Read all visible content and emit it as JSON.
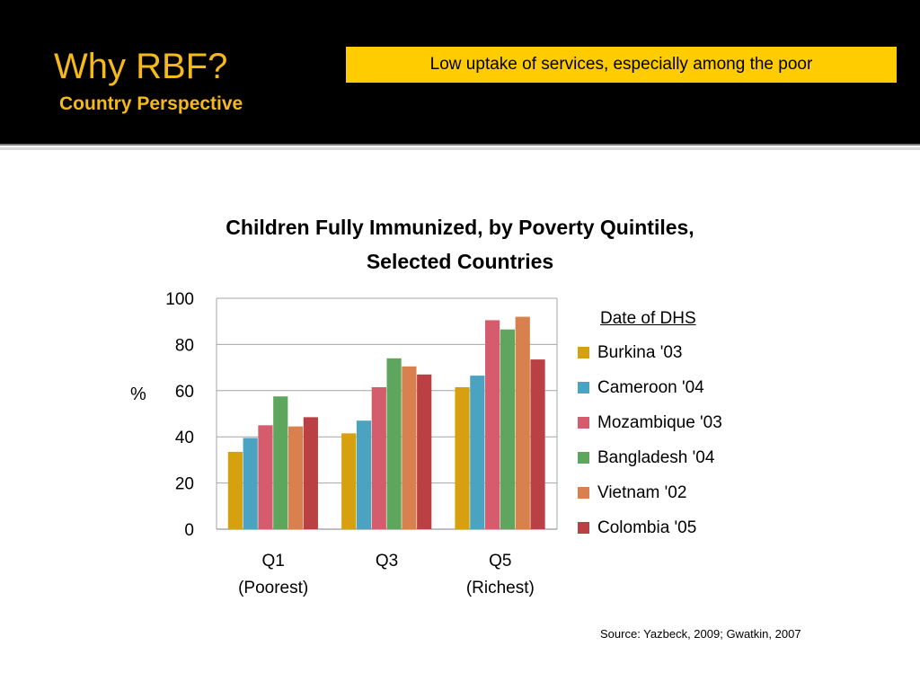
{
  "slide": {
    "title": "Why RBF?",
    "subtitle": "Country Perspective",
    "callout": "Low uptake of services, especially among the poor",
    "source": "Source: Yazbeck, 2009; Gwatkin, 2007"
  },
  "colors": {
    "header_bg": "#000000",
    "title_text": "#f5b91c",
    "callout_bg": "#ffcc00"
  },
  "chart_data": {
    "type": "bar",
    "title": "Children Fully Immunized, by Poverty Quintiles, Selected Countries",
    "ylabel": "%",
    "xlabel": "",
    "ylim": [
      0,
      100
    ],
    "yticks": [
      0,
      20,
      40,
      60,
      80,
      100
    ],
    "grid": true,
    "legend_title": "Date of DHS",
    "legend_position": "right",
    "categories": [
      "Q1\n(Poorest)",
      "Q3",
      "Q5\n(Richest)"
    ],
    "series": [
      {
        "name": "Burkina '03",
        "color": "#d6a010",
        "values": [
          33.5,
          41.5,
          61.5
        ]
      },
      {
        "name": "Cameroon '04",
        "color": "#4aa3c0",
        "values": [
          39.5,
          47,
          66.5
        ]
      },
      {
        "name": "Mozambique '03",
        "color": "#d45c6c",
        "values": [
          45,
          61.5,
          90.5
        ]
      },
      {
        "name": "Bangladesh '04",
        "color": "#5ea55e",
        "values": [
          57.5,
          74,
          86.5
        ]
      },
      {
        "name": "Vietnam '02",
        "color": "#d8804e",
        "values": [
          44.5,
          70.5,
          92
        ]
      },
      {
        "name": "Colombia '05",
        "color": "#bb4043",
        "values": [
          48.5,
          67,
          73.5
        ]
      }
    ]
  }
}
